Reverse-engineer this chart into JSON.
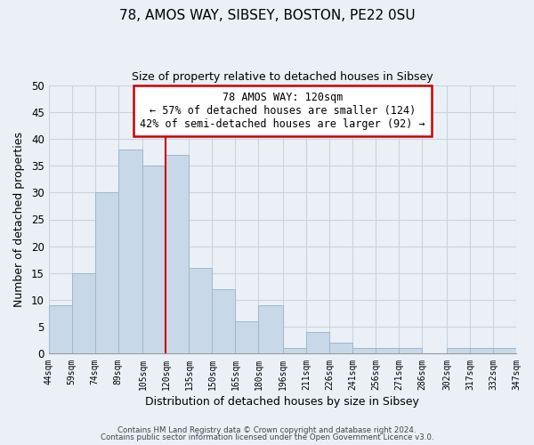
{
  "title": "78, AMOS WAY, SIBSEY, BOSTON, PE22 0SU",
  "subtitle": "Size of property relative to detached houses in Sibsey",
  "xlabel": "Distribution of detached houses by size in Sibsey",
  "ylabel": "Number of detached properties",
  "bar_values": [
    9,
    15,
    30,
    38,
    35,
    37,
    16,
    12,
    6,
    9,
    1,
    4,
    2,
    1,
    1,
    1,
    0,
    1,
    1,
    1
  ],
  "bar_edges": [
    44,
    59,
    74,
    89,
    105,
    120,
    135,
    150,
    165,
    180,
    196,
    211,
    226,
    241,
    256,
    271,
    286,
    302,
    317,
    332,
    347
  ],
  "xlabels": [
    "44sqm",
    "59sqm",
    "74sqm",
    "89sqm",
    "105sqm",
    "120sqm",
    "135sqm",
    "150sqm",
    "165sqm",
    "180sqm",
    "196sqm",
    "211sqm",
    "226sqm",
    "241sqm",
    "256sqm",
    "271sqm",
    "286sqm",
    "302sqm",
    "317sqm",
    "332sqm",
    "347sqm"
  ],
  "bar_color": "#c8d8e8",
  "bar_edgecolor": "#a0b8cc",
  "redline_x": 120,
  "ylim": [
    0,
    50
  ],
  "yticks": [
    0,
    5,
    10,
    15,
    20,
    25,
    30,
    35,
    40,
    45,
    50
  ],
  "annotation_title": "78 AMOS WAY: 120sqm",
  "annotation_line1": "← 57% of detached houses are smaller (124)",
  "annotation_line2": "42% of semi-detached houses are larger (92) →",
  "annotation_box_color": "#ffffff",
  "annotation_box_edgecolor": "#cc0000",
  "footer1": "Contains HM Land Registry data © Crown copyright and database right 2024.",
  "footer2": "Contains public sector information licensed under the Open Government Licence v3.0.",
  "grid_color": "#c8d4e0",
  "background_color": "#eaf0f6"
}
